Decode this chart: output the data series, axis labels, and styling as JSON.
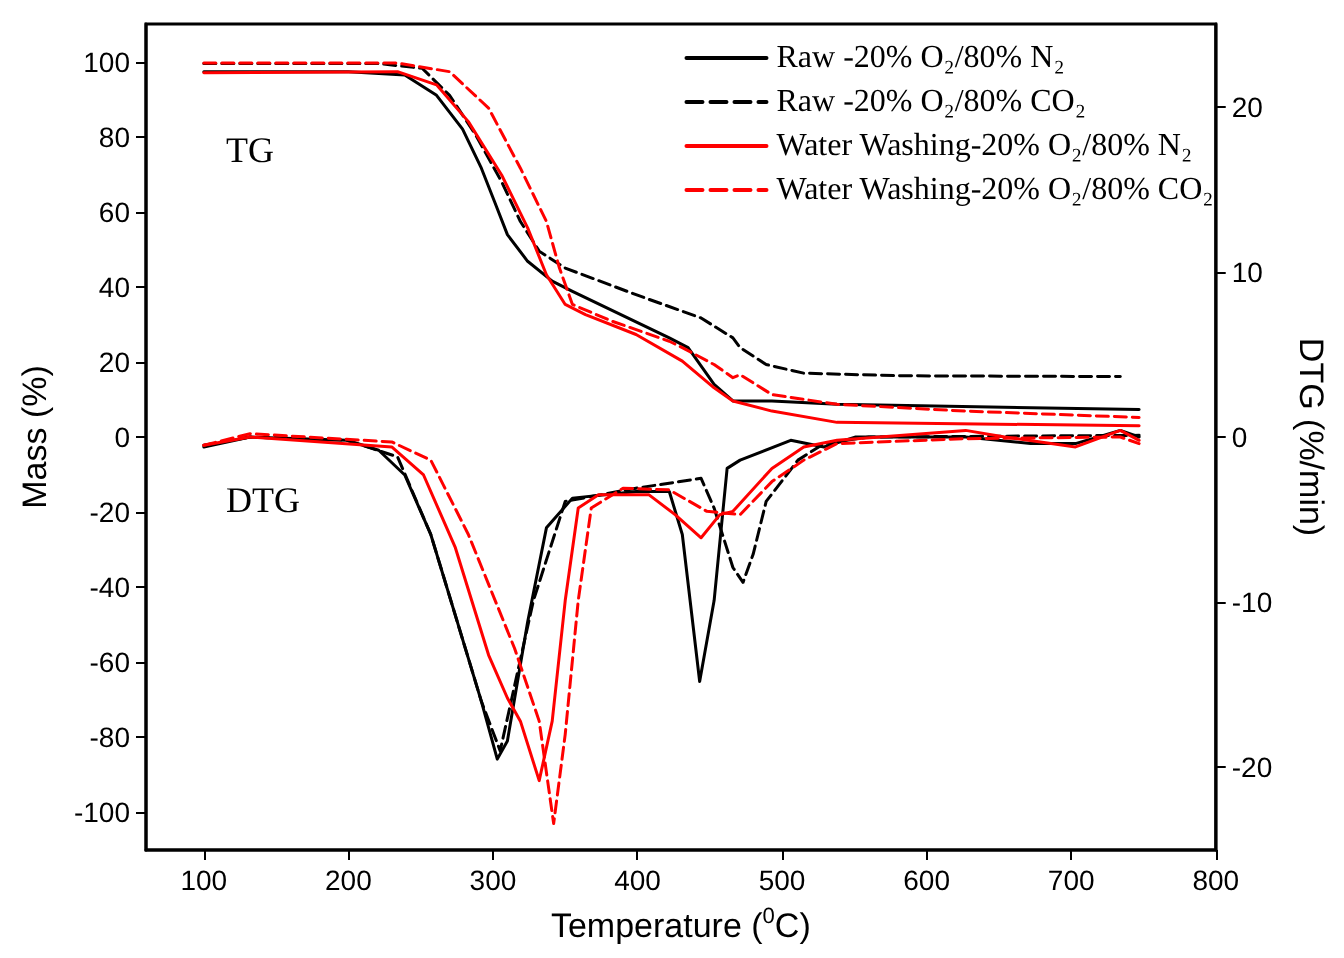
{
  "chart_data": {
    "type": "line",
    "xlabel": "Temperature ($^{0}$C)",
    "ylabel": "Mass (%)",
    "y2label": "DTG (%/min)",
    "xlim": [
      60,
      800
    ],
    "xticks": [
      100,
      200,
      300,
      400,
      500,
      600,
      700,
      800
    ],
    "ylim": [
      -110,
      110
    ],
    "yticks": [
      -100,
      -80,
      -60,
      -40,
      -20,
      0,
      20,
      40,
      60,
      80,
      100
    ],
    "y2lim": [
      -25,
      25
    ],
    "y2ticks": [
      -20,
      -10,
      0,
      10,
      20
    ],
    "grid": false,
    "legend": "top right",
    "marker": "none",
    "annotations": [
      "TG",
      "DTG"
    ],
    "series": [
      {
        "name": "Raw -20% O₂/80% N₂",
        "color": "#000000",
        "line_style": "solid",
        "x": [
          100,
          200,
          239,
          261,
          279,
          292,
          301,
          310,
          324,
          341,
          355,
          422,
          435,
          453,
          466,
          493,
          538,
          747
        ],
        "values": [
          97.3,
          97.3,
          96.4,
          91,
          82,
          71.6,
          62.8,
          53.9,
          46.8,
          41.5,
          38.8,
          26.4,
          23.8,
          14,
          9.6,
          9.6,
          8.7,
          7.3
        ]
      },
      {
        "name": "Raw -20% O₂/80% CO₂",
        "color": "#000000",
        "line_style": "dashed",
        "x": [
          100,
          220,
          251,
          270,
          288,
          306,
          319,
          332,
          350,
          399,
          431,
          444,
          466,
          471,
          489,
          515,
          582,
          734
        ],
        "values": [
          99.5,
          99.5,
          98.2,
          91,
          80.5,
          68,
          57.4,
          49.5,
          45,
          37.9,
          33.5,
          31.7,
          26.4,
          23.8,
          19.3,
          17,
          16.3,
          16.1
        ]
      },
      {
        "name": "Water Washing-20% O₂/80% N₂",
        "color": "#ff0000",
        "line_style": "solid",
        "x": [
          100,
          234,
          261,
          283,
          306,
          324,
          337,
          350,
          364,
          399,
          431,
          453,
          466,
          493,
          538,
          747
        ],
        "values": [
          97,
          97.3,
          93.8,
          84,
          69.8,
          55.7,
          43.2,
          35.3,
          32.6,
          27.3,
          20.2,
          13.1,
          9.6,
          6.9,
          3.9,
          3
        ]
      },
      {
        "name": "Water Washing-20% O₂/80% CO₂",
        "color": "#ff0000",
        "line_style": "dashed",
        "x": [
          100,
          234,
          270,
          297,
          319,
          337,
          346,
          355,
          382,
          422,
          431,
          453,
          466,
          471,
          493,
          538,
          627,
          747
        ],
        "values": [
          99.6,
          99.6,
          97.3,
          87.6,
          71.6,
          57.4,
          45,
          35.3,
          30.9,
          25.5,
          23.8,
          19.3,
          15.8,
          16.6,
          11.3,
          8.7,
          6.9,
          5.2
        ]
      },
      {
        "color": "#000000",
        "line_style": "solid",
        "axis": "y2",
        "x": [
          100,
          132,
          199,
          221,
          239,
          257,
          274,
          292,
          303,
          310,
          324,
          337,
          355,
          399,
          422,
          431,
          443,
          453,
          462,
          471,
          506,
          529,
          551,
          627,
          672,
          703,
          734,
          747
        ],
        "values": [
          -0.6,
          0,
          -0.2,
          -0.8,
          -2.3,
          -5.9,
          -10.8,
          -16,
          -19.5,
          -18.4,
          -11.2,
          -5.5,
          -3.7,
          -3.3,
          -3.3,
          -5.9,
          -14.8,
          -9.9,
          -1.9,
          -1.4,
          -0.2,
          -0.6,
          0,
          0,
          -0.4,
          -0.4,
          0.4,
          0
        ]
      },
      {
        "color": "#000000",
        "line_style": "dashed",
        "axis": "y2",
        "x": [
          100,
          132,
          199,
          234,
          257,
          274,
          292,
          305,
          328,
          350,
          399,
          444,
          453,
          466,
          473,
          480,
          489,
          511,
          529,
          560,
          747
        ],
        "values": [
          -0.5,
          0,
          -0.2,
          -1.2,
          -5.9,
          -10.8,
          -16,
          -19,
          -9.9,
          -3.9,
          -3.1,
          -2.5,
          -4.3,
          -7.9,
          -8.8,
          -7.1,
          -3.9,
          -1.4,
          -0.4,
          0,
          0.1
        ]
      },
      {
        "color": "#ff0000",
        "line_style": "solid",
        "axis": "y2",
        "x": [
          100,
          132,
          230,
          252,
          274,
          297,
          310,
          319,
          332,
          341,
          350,
          359,
          373,
          408,
          426,
          444,
          457,
          466,
          493,
          515,
          538,
          627,
          654,
          703,
          734,
          747
        ],
        "values": [
          -0.5,
          0,
          -0.6,
          -2.3,
          -6.7,
          -13.2,
          -15.8,
          -17.2,
          -20.8,
          -17.2,
          -9.9,
          -4.3,
          -3.5,
          -3.5,
          -4.7,
          -6.1,
          -4.7,
          -4.5,
          -1.9,
          -0.6,
          -0.2,
          0.4,
          0,
          -0.6,
          0.4,
          -0.2
        ]
      },
      {
        "color": "#ff0000",
        "line_style": "dashed",
        "axis": "y2",
        "x": [
          100,
          132,
          230,
          257,
          283,
          315,
          332,
          342,
          350,
          359,
          368,
          390,
          422,
          448,
          471,
          493,
          515,
          538,
          627,
          734,
          747
        ],
        "values": [
          -0.5,
          0.2,
          -0.3,
          -1.4,
          -5.9,
          -12.8,
          -17.2,
          -23.4,
          -18,
          -9.9,
          -4.3,
          -3.1,
          -3.2,
          -4.5,
          -4.7,
          -2.7,
          -1.4,
          -0.4,
          -0.1,
          0,
          -0.4
        ]
      }
    ]
  }
}
